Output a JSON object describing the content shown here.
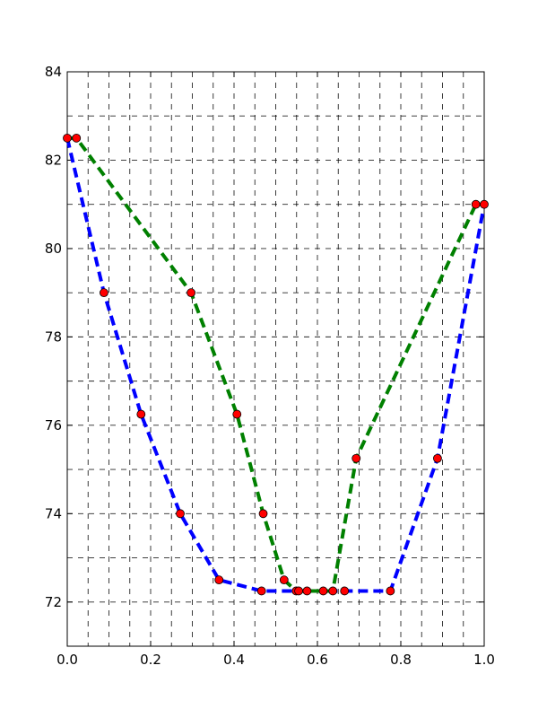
{
  "chart_data": {
    "type": "line",
    "title": "",
    "xlabel": "",
    "ylabel": "",
    "xlim": [
      0.0,
      1.0
    ],
    "ylim": [
      71.0,
      84.0
    ],
    "grid": true,
    "x_ticks": [
      0.0,
      0.2,
      0.4,
      0.6,
      0.8,
      1.0
    ],
    "x_tick_labels": [
      "0.0",
      "0.2",
      "0.4",
      "0.6",
      "0.8",
      "1.0"
    ],
    "y_ticks": [
      72,
      74,
      76,
      78,
      80,
      82,
      84
    ],
    "y_tick_labels": [
      "72",
      "74",
      "76",
      "78",
      "80",
      "82",
      "84"
    ],
    "x_grid_step": 0.05,
    "y_grid_step": 1.0,
    "series": [
      {
        "color": "#0000ff",
        "line_style": "dashed",
        "marker": "none",
        "x": [
          0.0,
          0.088,
          0.177,
          0.271,
          0.364,
          0.466,
          0.555,
          0.614,
          0.665,
          0.775,
          0.888,
          1.0
        ],
        "y": [
          82.5,
          79.0,
          76.25,
          74.0,
          72.5,
          72.25,
          72.25,
          72.25,
          72.25,
          72.25,
          75.25,
          81.0
        ]
      },
      {
        "color": "#008000",
        "line_style": "dashed",
        "marker": "none",
        "x": [
          0.0,
          0.022,
          0.297,
          0.407,
          0.47,
          0.52,
          0.549,
          0.575,
          0.637,
          0.693,
          0.98,
          1.0
        ],
        "y": [
          82.5,
          82.5,
          79.0,
          76.25,
          74.0,
          72.5,
          72.25,
          72.25,
          72.25,
          75.25,
          81.0,
          81.0
        ]
      }
    ],
    "points": {
      "color": "#ff0000",
      "marker": "circle",
      "x": [
        0.0,
        0.022,
        0.088,
        0.177,
        0.271,
        0.297,
        0.364,
        0.407,
        0.466,
        0.47,
        0.52,
        0.549,
        0.555,
        0.575,
        0.614,
        0.637,
        0.665,
        0.693,
        0.775,
        0.888,
        0.98,
        1.0
      ],
      "y": [
        82.5,
        82.5,
        79.0,
        76.25,
        74.0,
        79.0,
        72.5,
        76.25,
        72.25,
        74.0,
        72.5,
        72.25,
        72.25,
        72.25,
        72.25,
        72.25,
        72.25,
        75.25,
        72.25,
        75.25,
        81.0,
        81.0
      ]
    }
  }
}
